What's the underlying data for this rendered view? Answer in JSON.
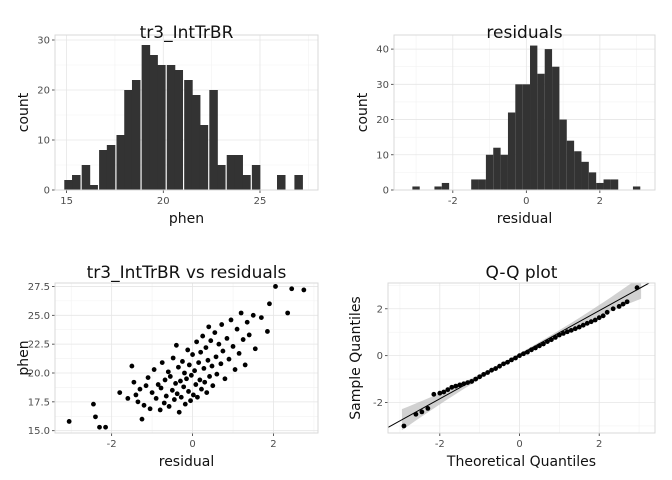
{
  "chart_data": [
    {
      "type": "bar",
      "title": "tr3_IntTrBR",
      "xlabel": "phen",
      "ylabel": "count",
      "xlim": [
        14.4,
        28.0
      ],
      "ylim": [
        0,
        31
      ],
      "xticks": [
        15,
        20,
        25
      ],
      "yticks": [
        0,
        10,
        20,
        30
      ],
      "bin_width": 0.44,
      "bins": [
        {
          "x": 15.1,
          "count": 2
        },
        {
          "x": 15.5,
          "count": 3
        },
        {
          "x": 16.0,
          "count": 5
        },
        {
          "x": 16.4,
          "count": 1
        },
        {
          "x": 16.9,
          "count": 8
        },
        {
          "x": 17.3,
          "count": 9
        },
        {
          "x": 17.8,
          "count": 11
        },
        {
          "x": 18.2,
          "count": 20
        },
        {
          "x": 18.6,
          "count": 22
        },
        {
          "x": 19.1,
          "count": 29
        },
        {
          "x": 19.5,
          "count": 27
        },
        {
          "x": 19.9,
          "count": 25
        },
        {
          "x": 20.4,
          "count": 25
        },
        {
          "x": 20.8,
          "count": 24
        },
        {
          "x": 21.3,
          "count": 22
        },
        {
          "x": 21.7,
          "count": 19
        },
        {
          "x": 22.1,
          "count": 13
        },
        {
          "x": 22.6,
          "count": 20
        },
        {
          "x": 23.0,
          "count": 5
        },
        {
          "x": 23.5,
          "count": 7
        },
        {
          "x": 23.9,
          "count": 7
        },
        {
          "x": 24.3,
          "count": 3
        },
        {
          "x": 24.8,
          "count": 5
        },
        {
          "x": 26.1,
          "count": 3
        },
        {
          "x": 27.0,
          "count": 3
        }
      ]
    },
    {
      "type": "bar",
      "title": "residuals",
      "xlabel": "residual",
      "ylabel": "count",
      "xlim": [
        -3.6,
        3.5
      ],
      "ylim": [
        0,
        44
      ],
      "xticks": [
        -2,
        0,
        2
      ],
      "yticks": [
        0,
        10,
        20,
        30,
        40
      ],
      "bin_width": 0.2,
      "bins": [
        {
          "x": -3.0,
          "count": 1
        },
        {
          "x": -2.4,
          "count": 1
        },
        {
          "x": -2.2,
          "count": 2
        },
        {
          "x": -1.4,
          "count": 3
        },
        {
          "x": -1.2,
          "count": 3
        },
        {
          "x": -1.0,
          "count": 10
        },
        {
          "x": -0.8,
          "count": 12
        },
        {
          "x": -0.6,
          "count": 10
        },
        {
          "x": -0.4,
          "count": 22
        },
        {
          "x": -0.2,
          "count": 30
        },
        {
          "x": 0.0,
          "count": 30
        },
        {
          "x": 0.2,
          "count": 41
        },
        {
          "x": 0.4,
          "count": 33
        },
        {
          "x": 0.6,
          "count": 40
        },
        {
          "x": 0.8,
          "count": 35
        },
        {
          "x": 1.0,
          "count": 20
        },
        {
          "x": 1.2,
          "count": 14
        },
        {
          "x": 1.4,
          "count": 11
        },
        {
          "x": 1.6,
          "count": 8
        },
        {
          "x": 1.8,
          "count": 5
        },
        {
          "x": 2.0,
          "count": 2
        },
        {
          "x": 2.2,
          "count": 3
        },
        {
          "x": 2.4,
          "count": 3
        },
        {
          "x": 3.0,
          "count": 1
        }
      ]
    },
    {
      "type": "scatter",
      "title": "tr3_IntTrBR vs residuals",
      "xlabel": "residual",
      "ylabel": "phen",
      "xlim": [
        -3.4,
        3.1
      ],
      "ylim": [
        14.8,
        27.8
      ],
      "xticks": [
        -2,
        0,
        2
      ],
      "yticks": [
        15.0,
        17.5,
        20.0,
        22.5,
        25.0,
        27.5
      ],
      "ytick_labels": [
        "15.0",
        "17.5",
        "20.0",
        "22.5",
        "25.0",
        "27.5"
      ],
      "points": [
        [
          -3.05,
          15.8
        ],
        [
          -2.45,
          17.3
        ],
        [
          -2.4,
          16.2
        ],
        [
          -2.3,
          15.3
        ],
        [
          -2.15,
          15.3
        ],
        [
          -1.8,
          18.3
        ],
        [
          -1.6,
          17.8
        ],
        [
          -1.5,
          20.6
        ],
        [
          -1.45,
          19.2
        ],
        [
          -1.4,
          18.1
        ],
        [
          -1.35,
          17.5
        ],
        [
          -1.3,
          18.6
        ],
        [
          -1.25,
          16.0
        ],
        [
          -1.2,
          17.2
        ],
        [
          -1.15,
          18.9
        ],
        [
          -1.1,
          19.6
        ],
        [
          -1.05,
          16.9
        ],
        [
          -1.0,
          18.3
        ],
        [
          -0.95,
          20.3
        ],
        [
          -0.9,
          17.8
        ],
        [
          -0.85,
          19.0
        ],
        [
          -0.8,
          16.8
        ],
        [
          -0.78,
          18.7
        ],
        [
          -0.75,
          20.9
        ],
        [
          -0.7,
          17.4
        ],
        [
          -0.68,
          19.4
        ],
        [
          -0.65,
          18.0
        ],
        [
          -0.6,
          20.1
        ],
        [
          -0.58,
          17.1
        ],
        [
          -0.55,
          19.7
        ],
        [
          -0.5,
          18.5
        ],
        [
          -0.48,
          21.3
        ],
        [
          -0.45,
          17.7
        ],
        [
          -0.42,
          19.1
        ],
        [
          -0.4,
          22.4
        ],
        [
          -0.38,
          18.2
        ],
        [
          -0.35,
          20.5
        ],
        [
          -0.33,
          16.6
        ],
        [
          -0.3,
          19.3
        ],
        [
          -0.28,
          17.9
        ],
        [
          -0.25,
          21.0
        ],
        [
          -0.22,
          18.8
        ],
        [
          -0.2,
          20.0
        ],
        [
          -0.18,
          17.3
        ],
        [
          -0.15,
          19.5
        ],
        [
          -0.12,
          22.0
        ],
        [
          -0.1,
          18.4
        ],
        [
          -0.08,
          20.7
        ],
        [
          -0.05,
          17.6
        ],
        [
          -0.03,
          19.8
        ],
        [
          0.0,
          21.6
        ],
        [
          0.02,
          18.1
        ],
        [
          0.05,
          20.2
        ],
        [
          0.08,
          19.0
        ],
        [
          0.1,
          22.7
        ],
        [
          0.12,
          17.9
        ],
        [
          0.15,
          20.9
        ],
        [
          0.18,
          19.4
        ],
        [
          0.2,
          21.8
        ],
        [
          0.22,
          18.6
        ],
        [
          0.25,
          23.2
        ],
        [
          0.28,
          20.4
        ],
        [
          0.3,
          19.2
        ],
        [
          0.33,
          22.2
        ],
        [
          0.35,
          18.3
        ],
        [
          0.38,
          21.1
        ],
        [
          0.4,
          24.0
        ],
        [
          0.42,
          19.7
        ],
        [
          0.45,
          22.8
        ],
        [
          0.48,
          20.6
        ],
        [
          0.5,
          18.9
        ],
        [
          0.55,
          23.5
        ],
        [
          0.58,
          21.4
        ],
        [
          0.6,
          19.9
        ],
        [
          0.65,
          22.5
        ],
        [
          0.7,
          20.8
        ],
        [
          0.72,
          24.2
        ],
        [
          0.75,
          21.9
        ],
        [
          0.8,
          19.5
        ],
        [
          0.85,
          23.0
        ],
        [
          0.9,
          21.2
        ],
        [
          0.95,
          24.6
        ],
        [
          1.0,
          22.3
        ],
        [
          1.05,
          20.3
        ],
        [
          1.1,
          23.8
        ],
        [
          1.15,
          21.7
        ],
        [
          1.2,
          25.2
        ],
        [
          1.25,
          22.9
        ],
        [
          1.3,
          20.7
        ],
        [
          1.35,
          24.4
        ],
        [
          1.4,
          23.3
        ],
        [
          1.5,
          25.0
        ],
        [
          1.55,
          22.1
        ],
        [
          1.7,
          24.8
        ],
        [
          1.85,
          23.6
        ],
        [
          1.9,
          26.0
        ],
        [
          2.05,
          27.5
        ],
        [
          2.35,
          25.2
        ],
        [
          2.45,
          27.3
        ],
        [
          2.75,
          27.2
        ]
      ]
    },
    {
      "type": "scatter",
      "title": "Q-Q plot",
      "xlabel": "Theoretical Quantiles",
      "ylabel": "Sample Quantiles",
      "xlim": [
        -3.3,
        3.4
      ],
      "ylim": [
        -3.3,
        3.1
      ],
      "xticks": [
        -2,
        0,
        2
      ],
      "yticks": [
        -2,
        0,
        2
      ],
      "reference_line": {
        "slope": 0.94,
        "intercept": 0.04
      },
      "confidence_band": true,
      "points": [
        [
          -2.9,
          -3.0
        ],
        [
          -2.6,
          -2.5
        ],
        [
          -2.45,
          -2.4
        ],
        [
          -2.3,
          -2.25
        ],
        [
          -2.15,
          -1.65
        ],
        [
          -2.0,
          -1.6
        ],
        [
          -1.9,
          -1.55
        ],
        [
          -1.8,
          -1.45
        ],
        [
          -1.7,
          -1.35
        ],
        [
          -1.6,
          -1.3
        ],
        [
          -1.5,
          -1.25
        ],
        [
          -1.4,
          -1.2
        ],
        [
          -1.3,
          -1.15
        ],
        [
          -1.2,
          -1.1
        ],
        [
          -1.1,
          -1.0
        ],
        [
          -1.0,
          -0.9
        ],
        [
          -0.9,
          -0.8
        ],
        [
          -0.8,
          -0.72
        ],
        [
          -0.7,
          -0.62
        ],
        [
          -0.6,
          -0.55
        ],
        [
          -0.5,
          -0.45
        ],
        [
          -0.4,
          -0.35
        ],
        [
          -0.3,
          -0.28
        ],
        [
          -0.2,
          -0.18
        ],
        [
          -0.1,
          -0.1
        ],
        [
          0.0,
          0.0
        ],
        [
          0.1,
          0.08
        ],
        [
          0.2,
          0.15
        ],
        [
          0.3,
          0.25
        ],
        [
          0.4,
          0.33
        ],
        [
          0.5,
          0.42
        ],
        [
          0.6,
          0.5
        ],
        [
          0.7,
          0.6
        ],
        [
          0.8,
          0.68
        ],
        [
          0.9,
          0.78
        ],
        [
          1.0,
          0.88
        ],
        [
          1.1,
          0.95
        ],
        [
          1.2,
          1.02
        ],
        [
          1.3,
          1.08
        ],
        [
          1.4,
          1.15
        ],
        [
          1.5,
          1.22
        ],
        [
          1.6,
          1.3
        ],
        [
          1.7,
          1.38
        ],
        [
          1.8,
          1.45
        ],
        [
          1.9,
          1.52
        ],
        [
          2.0,
          1.62
        ],
        [
          2.1,
          1.7
        ],
        [
          2.2,
          1.85
        ],
        [
          2.35,
          2.0
        ],
        [
          2.5,
          2.1
        ],
        [
          2.6,
          2.2
        ],
        [
          2.7,
          2.3
        ],
        [
          2.95,
          2.9
        ]
      ]
    }
  ]
}
